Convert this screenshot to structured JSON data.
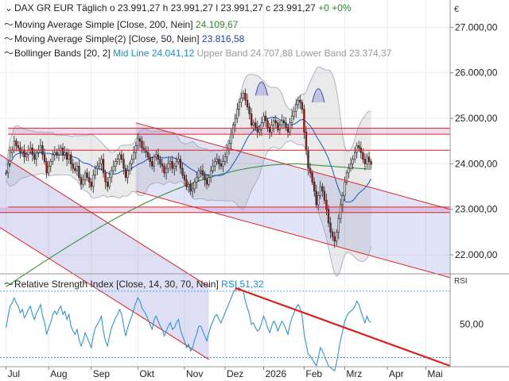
{
  "currency": "€",
  "header": {
    "symbol": "DAX GR EUR",
    "interval": "Täglich",
    "o_label": "o",
    "o_value": "23.991,27",
    "h_label": "h",
    "h_value": "23.991,27",
    "l_label": "l",
    "l_value": "23.991,27",
    "c_label": "c",
    "c_value": "23.991,27",
    "change": "+0",
    "change_pct": "+0%"
  },
  "indicators": [
    {
      "icon": "curve-icon",
      "label": "Moving Average Simple [Close, 200, Nein]",
      "value": "24.109,67",
      "color": "#2a8a2a"
    },
    {
      "icon": "curve-icon",
      "label": "Moving Average Simple(2) [Close, 50, Nein]",
      "value": "23.816,58",
      "color": "#1a3fb5"
    },
    {
      "icon": "curve-icon",
      "label": "Bollinger Bands [20, 2]",
      "value": "Mid Line 24.041,12",
      "extra1": "Upper Band 24.707,88",
      "extra2": "Lower Band 23.374,37",
      "color": "#1b8fd6"
    }
  ],
  "rsi_legend": {
    "label": "Relative Strength Index [Close, 14, 30, 70, Nein]",
    "value": "RSI 51,32",
    "axis_title": "RSI"
  },
  "chart_data": [
    {
      "type": "candlestick",
      "title": "DAX GR EUR",
      "ylim": [
        21600,
        27600
      ],
      "y_ticks": [
        22000,
        23000,
        24000,
        25000,
        26000,
        27000
      ],
      "y_tick_labels": [
        "22.000,00",
        "23.000,00",
        "24.000,00",
        "25.000,00",
        "26.000,00",
        "27.000,00"
      ],
      "x_tick_labels": [
        "Jul",
        "Aug",
        "Sep",
        "Okt",
        "Nov",
        "Dez",
        "2026",
        "Feb",
        "Mrz",
        "Apr",
        "Mai"
      ],
      "x_ticks": [
        0,
        21,
        42,
        65,
        88,
        108,
        127,
        147,
        167,
        188,
        207
      ],
      "x_range": [
        -3,
        219
      ],
      "close_series": [
        23800,
        24000,
        24250,
        24300,
        24500,
        24400,
        24350,
        24250,
        24300,
        24150,
        24200,
        24300,
        24350,
        24200,
        24100,
        24250,
        24300,
        24400,
        24200,
        24050,
        23800,
        23950,
        24050,
        24200,
        24250,
        24200,
        24300,
        24350,
        24200,
        24250,
        24100,
        24200,
        24000,
        23900,
        23850,
        23950,
        23700,
        23550,
        23650,
        23800,
        23700,
        23600,
        23500,
        23750,
        23900,
        23950,
        24000,
        24100,
        23800,
        23600,
        23500,
        23700,
        23850,
        23950,
        24050,
        24100,
        24200,
        24100,
        23900,
        23700,
        23850,
        24000,
        24100,
        24250,
        24400,
        24550,
        24500,
        24350,
        24300,
        24250,
        24150,
        24050,
        23950,
        24150,
        24200,
        24100,
        24000,
        23950,
        23800,
        23900,
        24000,
        24050,
        23900,
        23950,
        24050,
        24100,
        23900,
        23750,
        23650,
        23500,
        23550,
        23400,
        23450,
        23600,
        23700,
        23850,
        23850,
        23750,
        23650,
        23550,
        23700,
        23850,
        23950,
        24050,
        24100,
        24000,
        23950,
        24050,
        24150,
        24300,
        24450,
        24650,
        24850,
        25000,
        25200,
        25350,
        25450,
        25550,
        25400,
        25250,
        25100,
        24850,
        24900,
        24800,
        24700,
        24750,
        24900,
        25050,
        24950,
        24800,
        24700,
        24850,
        24950,
        24900,
        24750,
        24850,
        24950,
        24900,
        24800,
        24700,
        24900,
        25050,
        25150,
        25300,
        25400,
        25350,
        25200,
        24700,
        24300,
        23900,
        23800,
        23600,
        23400,
        23100,
        23300,
        23500,
        23400,
        23200,
        23000,
        22700,
        22500,
        22400,
        22300,
        22500,
        22800,
        23100,
        23300,
        23600,
        23800,
        23900,
        24000,
        24100,
        24250,
        24400,
        24350,
        24250,
        24100,
        24000,
        24150,
        24050,
        23991
      ],
      "channel_color": "#3b47c8",
      "resistance_lines": [
        24780,
        24650,
        24300,
        23050
      ],
      "sma200_color": "#2a8a2a",
      "sma50_color": "#1a3fb5"
    },
    {
      "type": "line",
      "title": "Relative Strength Index",
      "ylim": [
        25,
        80
      ],
      "y_ticks": [
        50
      ],
      "y_tick_labels": [
        "50,00"
      ],
      "guide_lines": [
        30,
        70
      ],
      "series": [
        {
          "name": "RSI",
          "values": [
            48,
            55,
            61,
            63,
            66,
            63,
            61,
            57,
            59,
            54,
            56,
            59,
            61,
            56,
            53,
            57,
            59,
            62,
            55,
            51,
            44,
            48,
            51,
            56,
            58,
            56,
            59,
            61,
            56,
            58,
            53,
            56,
            49,
            46,
            44,
            47,
            41,
            37,
            40,
            45,
            42,
            39,
            36,
            43,
            48,
            50,
            52,
            55,
            46,
            40,
            37,
            43,
            48,
            51,
            54,
            56,
            59,
            56,
            49,
            43,
            48,
            52,
            55,
            59,
            63,
            66,
            64,
            60,
            58,
            56,
            53,
            50,
            47,
            53,
            55,
            52,
            49,
            47,
            43,
            46,
            49,
            51,
            47,
            48,
            51,
            53,
            47,
            43,
            40,
            36,
            38,
            34,
            36,
            41,
            44,
            49,
            49,
            46,
            43,
            40,
            45,
            49,
            52,
            55,
            56,
            53,
            51,
            54,
            57,
            60,
            63,
            66,
            69,
            71,
            72,
            72,
            71,
            70,
            64,
            60,
            56,
            50,
            51,
            48,
            46,
            47,
            51,
            55,
            52,
            48,
            45,
            49,
            52,
            50,
            46,
            49,
            52,
            50,
            47,
            44,
            50,
            54,
            57,
            60,
            62,
            60,
            55,
            44,
            38,
            32,
            31,
            29,
            27,
            25,
            30,
            36,
            34,
            31,
            28,
            25,
            24,
            23,
            22,
            27,
            34,
            41,
            46,
            52,
            55,
            57,
            58,
            59,
            61,
            64,
            62,
            58,
            54,
            51,
            55,
            52,
            51.32
          ]
        }
      ],
      "trendline_color": "#e02020"
    }
  ]
}
